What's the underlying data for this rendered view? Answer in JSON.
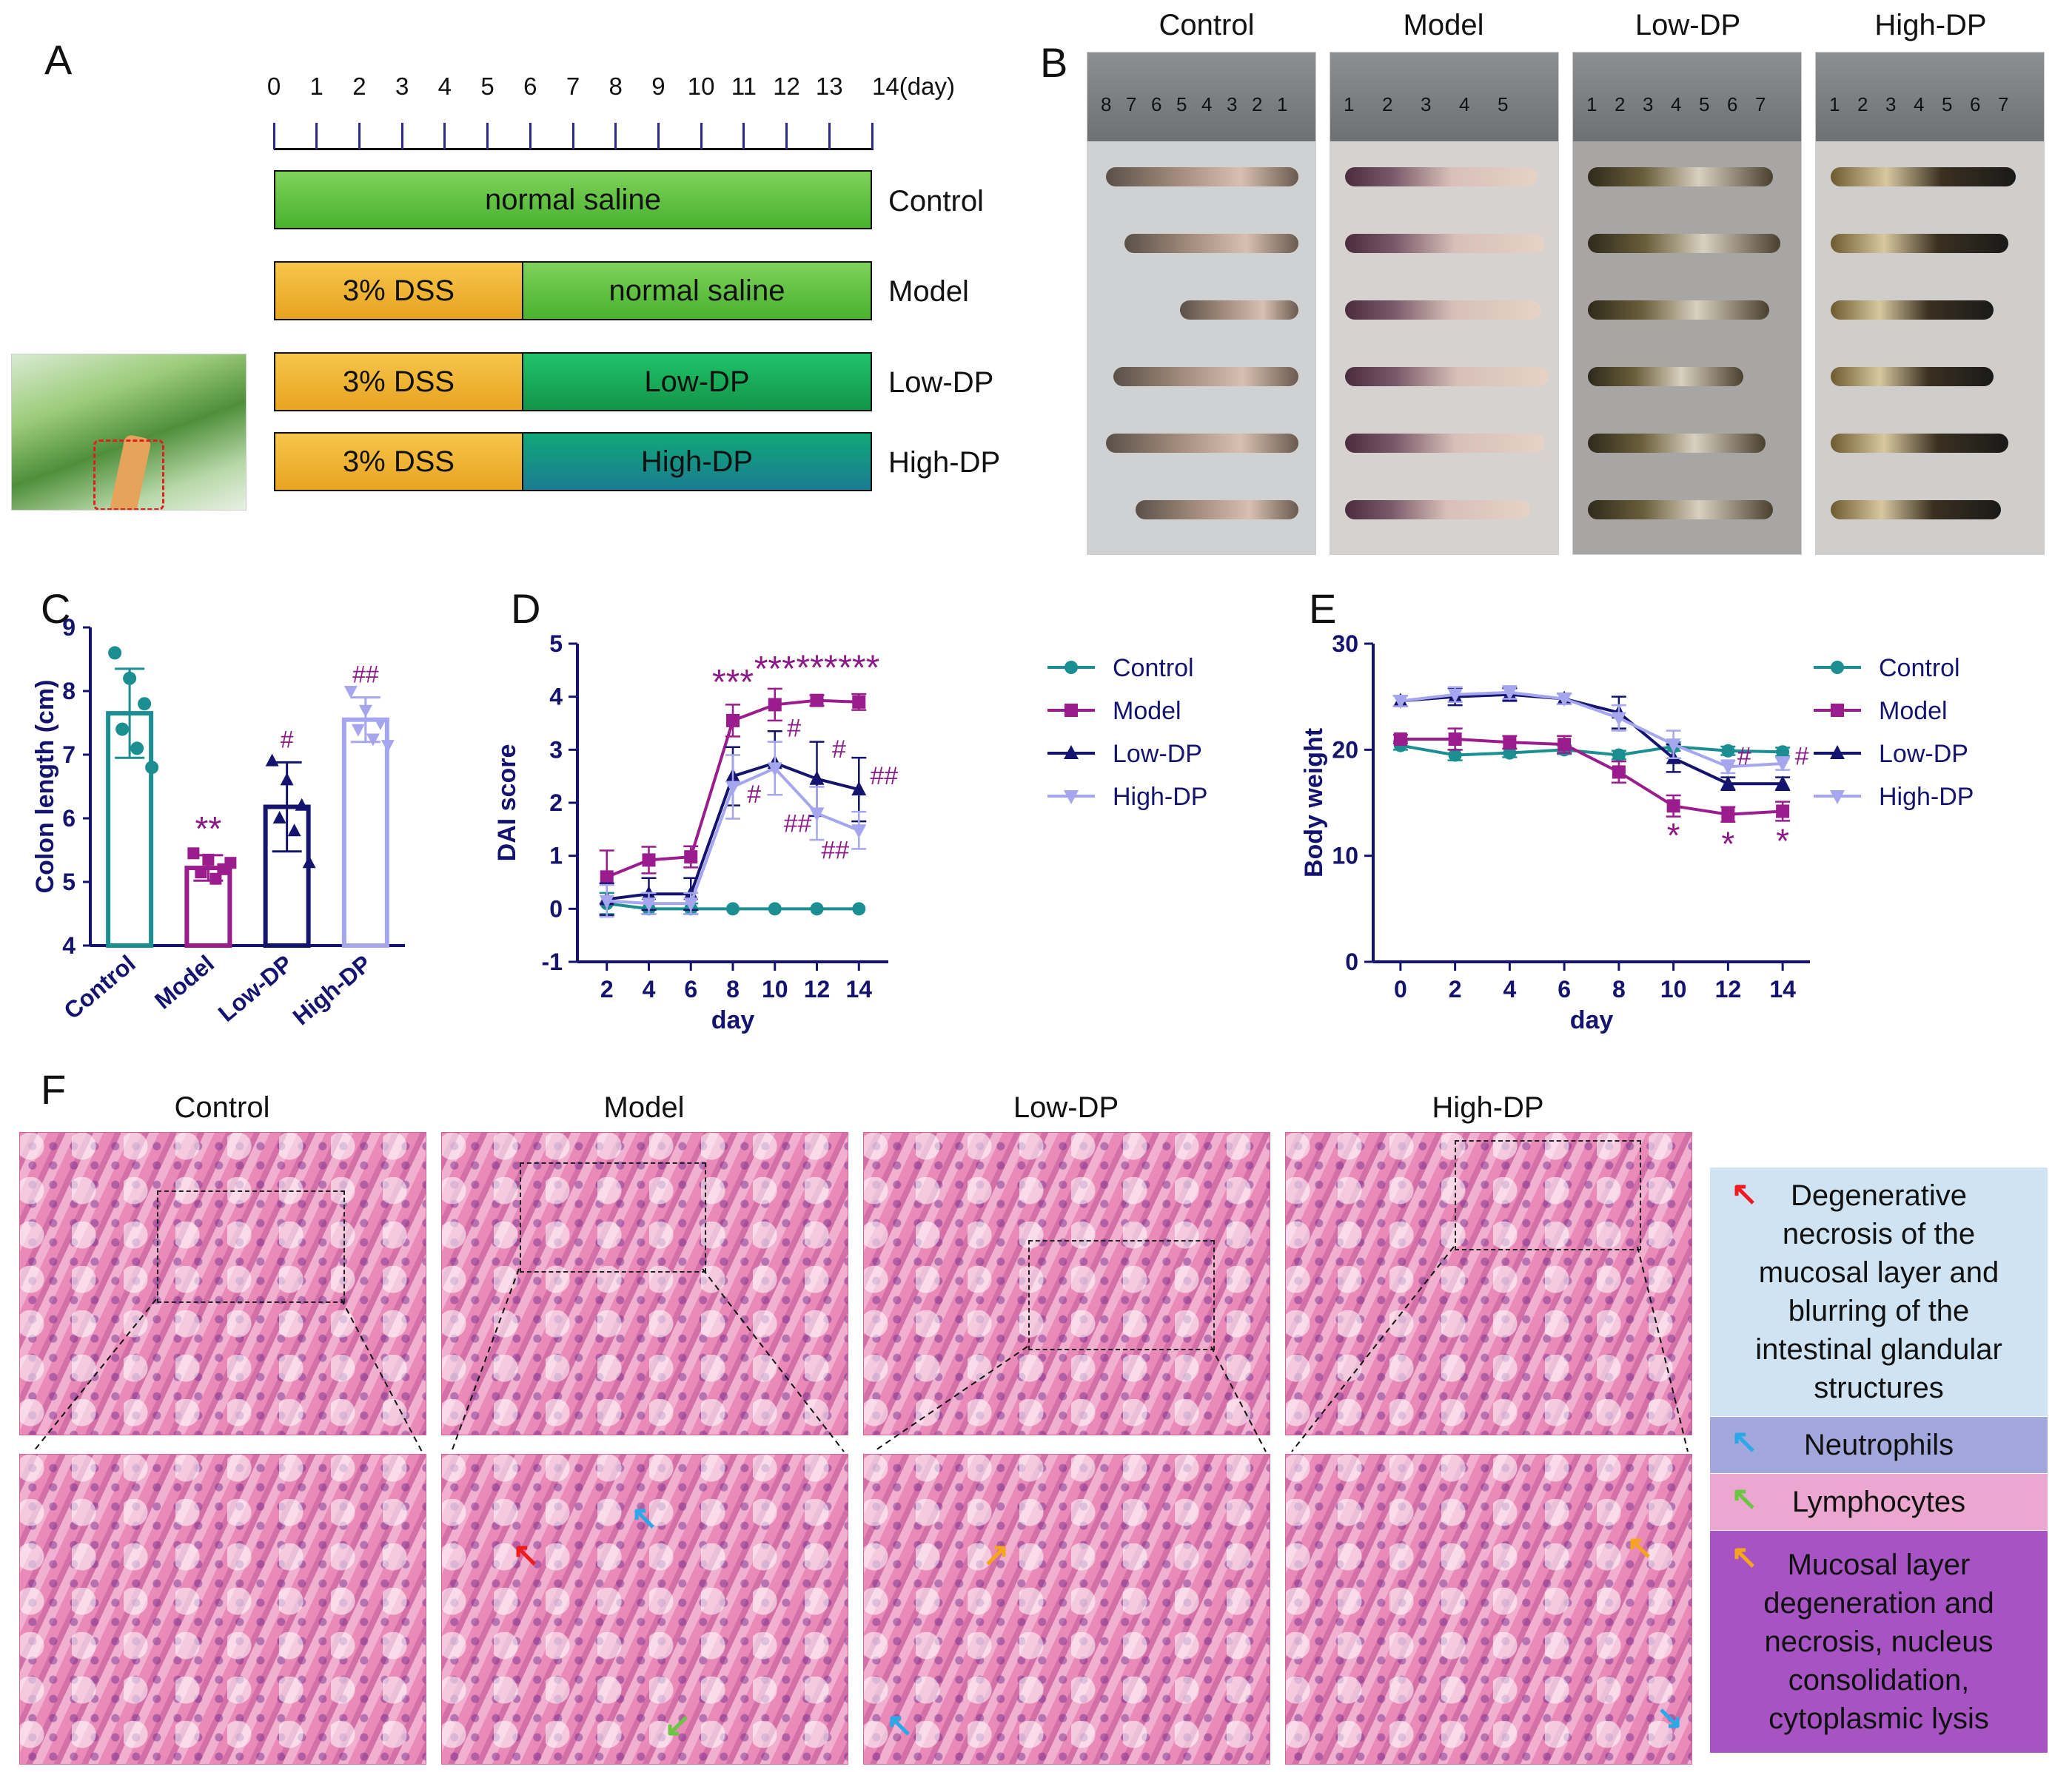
{
  "panels": {
    "A": "A",
    "B": "B",
    "C": "C",
    "D": "D",
    "E": "E",
    "F": "F"
  },
  "panelA": {
    "days": [
      "0",
      "1",
      "2",
      "3",
      "4",
      "5",
      "6",
      "7",
      "8",
      "9",
      "10",
      "11",
      "12",
      "13",
      "14(day)"
    ],
    "rows": [
      {
        "group": "Control",
        "segments": [
          "normal saline"
        ]
      },
      {
        "group": "Model",
        "segments": [
          "3% DSS",
          "normal saline"
        ]
      },
      {
        "group": "Low-DP",
        "segments": [
          "3% DSS",
          "Low-DP"
        ]
      },
      {
        "group": "High-DP",
        "segments": [
          "3% DSS",
          "High-DP"
        ]
      }
    ]
  },
  "panelB": {
    "groups": [
      "Control",
      "Model",
      "Low-DP",
      "High-DP"
    ],
    "rulers": [
      [
        "8",
        "7",
        "6",
        "5",
        "4",
        "3",
        "2",
        "1"
      ],
      [
        "1",
        "2",
        "3",
        "4",
        "5"
      ],
      [
        "1",
        "2",
        "3",
        "4",
        "5",
        "6",
        "7"
      ],
      [
        "1",
        "2",
        "3",
        "4",
        "5",
        "6",
        "7"
      ]
    ]
  },
  "colors": {
    "control": "#1a8e91",
    "model": "#9b1c8c",
    "lowdp": "#14146e",
    "highdp": "#a6a6ef",
    "sig": "#8b1a87",
    "green": "#5ec43a",
    "amber": "#f5a623",
    "teal": "#0a8f7c",
    "legend_bg1": "#cfe3f3",
    "legend_bg2": "#a2a7dc",
    "legend_bg3": "#eba7cf",
    "legend_bg4": "#a753c3"
  },
  "chart_data": [
    {
      "id": "C",
      "type": "bar",
      "categories": [
        "Control",
        "Model",
        "Low-DP",
        "High-DP"
      ],
      "values": [
        7.65,
        5.22,
        6.18,
        7.55
      ],
      "errors": [
        0.7,
        0.2,
        0.7,
        0.35
      ],
      "points": [
        [
          8.6,
          8.2,
          7.8,
          7.4,
          7.1,
          6.8
        ],
        [
          5.45,
          5.35,
          5.2,
          5.15,
          5.05,
          5.3
        ],
        [
          6.9,
          6.6,
          6.2,
          6.0,
          5.8,
          5.3
        ],
        [
          8.0,
          7.7,
          7.5,
          7.4,
          7.25,
          7.15
        ]
      ],
      "significance": [
        "",
        "**",
        "#",
        "##"
      ],
      "ylabel": "Colon length (cm)",
      "ylim": [
        4,
        9
      ],
      "yticks": [
        "4",
        "5",
        "6",
        "7",
        "8",
        "9"
      ]
    },
    {
      "id": "D",
      "type": "line",
      "xlabel": "day",
      "ylabel": "DAI score",
      "x": [
        2,
        4,
        6,
        8,
        10,
        12,
        14
      ],
      "xticks": [
        "2",
        "4",
        "6",
        "8",
        "10",
        "12",
        "14"
      ],
      "ylim": [
        -1,
        5
      ],
      "yticks": [
        "-1",
        "0",
        "1",
        "2",
        "3",
        "4",
        "5"
      ],
      "series": [
        {
          "name": "Control",
          "values": [
            0.1,
            0,
            0,
            0,
            0,
            0,
            0
          ],
          "errors": [
            0.2,
            0.1,
            0.1,
            0,
            0,
            0,
            0
          ]
        },
        {
          "name": "Model",
          "values": [
            0.6,
            0.92,
            0.98,
            3.55,
            3.85,
            3.93,
            3.9
          ],
          "errors": [
            0.5,
            0.25,
            0.2,
            0.3,
            0.3,
            0.1,
            0.15
          ]
        },
        {
          "name": "Low-DP",
          "values": [
            0.18,
            0.28,
            0.28,
            2.5,
            2.75,
            2.45,
            2.25
          ],
          "errors": [
            0.3,
            0.3,
            0.3,
            0.55,
            0.6,
            0.7,
            0.6
          ]
        },
        {
          "name": "High-DP",
          "values": [
            0.15,
            0.1,
            0.1,
            2.3,
            2.65,
            1.8,
            1.48
          ],
          "errors": [
            0.3,
            0.2,
            0.2,
            0.6,
            0.5,
            0.5,
            0.35
          ]
        }
      ],
      "annotations": [
        {
          "x": 8,
          "text": "***"
        },
        {
          "x": 10,
          "text": "***"
        },
        {
          "x": 12,
          "text": "***"
        },
        {
          "x": 14,
          "text": "***"
        },
        {
          "x": 10,
          "text": "#"
        },
        {
          "x": 10,
          "text": "#"
        },
        {
          "x": 12,
          "text": "#"
        },
        {
          "x": 12,
          "text": "##"
        },
        {
          "x": 14,
          "text": "##"
        },
        {
          "x": 14,
          "text": "##"
        }
      ]
    },
    {
      "id": "E",
      "type": "line",
      "xlabel": "day",
      "ylabel": "Body weight",
      "x": [
        0,
        2,
        4,
        6,
        8,
        10,
        12,
        14
      ],
      "xticks": [
        "0",
        "2",
        "4",
        "6",
        "8",
        "10",
        "12",
        "14"
      ],
      "ylim": [
        0,
        30
      ],
      "yticks": [
        "0",
        "10",
        "20",
        "30"
      ],
      "series": [
        {
          "name": "Control",
          "values": [
            20.4,
            19.5,
            19.7,
            20.0,
            19.5,
            20.3,
            19.9,
            19.8
          ],
          "errors": [
            0.4,
            0.5,
            0.4,
            0.4,
            0.4,
            0.4,
            0.4,
            0.4
          ]
        },
        {
          "name": "Model",
          "values": [
            21.0,
            21.0,
            20.7,
            20.5,
            17.9,
            14.7,
            13.9,
            14.2
          ],
          "errors": [
            0.4,
            1.0,
            0.6,
            0.8,
            1.0,
            1.0,
            0.7,
            0.9
          ]
        },
        {
          "name": "Low-DP",
          "values": [
            24.6,
            25.0,
            25.2,
            24.8,
            23.5,
            19.2,
            16.8,
            16.8
          ],
          "errors": [
            0.5,
            0.8,
            0.6,
            0.5,
            1.5,
            1.3,
            0.6,
            0.6
          ]
        },
        {
          "name": "High-DP",
          "values": [
            24.6,
            25.2,
            25.4,
            24.8,
            23.0,
            20.5,
            18.4,
            18.7
          ],
          "errors": [
            0.5,
            0.7,
            0.6,
            0.5,
            1.2,
            1.3,
            0.6,
            0.6
          ]
        }
      ],
      "annotations": [
        {
          "x": 10,
          "text": "*"
        },
        {
          "x": 12,
          "text": "*"
        },
        {
          "x": 14,
          "text": "*"
        },
        {
          "x": 12,
          "text": "#"
        },
        {
          "x": 14,
          "text": "#"
        }
      ]
    }
  ],
  "panelF": {
    "groups": [
      "Control",
      "Model",
      "Low-DP",
      "High-DP"
    ],
    "legend": [
      "Degenerative necrosis of the mucosal layer and blurring of the intestinal glandular structures",
      "Neutrophils",
      "Lymphocytes",
      "Mucosal layer degeneration and necrosis, nucleus consolidation, cytoplasmic lysis"
    ],
    "arrow_colors": [
      "#ee1c1c",
      "#2aa9e8",
      "#6cc644",
      "#f6a61c"
    ]
  }
}
